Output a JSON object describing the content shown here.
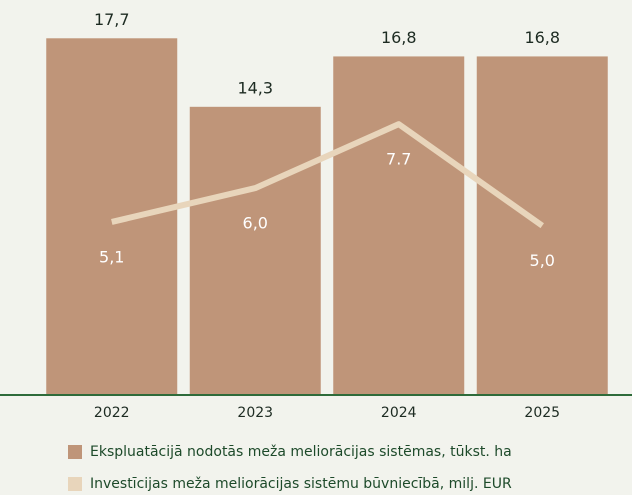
{
  "chart_data": {
    "type": "bar",
    "categories": [
      "2022",
      "2023",
      "2024",
      "2025"
    ],
    "series": [
      {
        "name": "Ekspluatācijā nodotās meža meliorācijas sistēmas, tūkst. ha",
        "color": "#bf9579",
        "values": [
          17.7,
          14.3,
          16.8,
          16.8
        ],
        "value_labels": [
          "17,7",
          "14,3",
          "16,8",
          "16,8"
        ]
      },
      {
        "name": "Investīcijas meža meliorācijas sistēmu būvniecībā, milj. EUR",
        "color": "#e8d5bb",
        "type": "line",
        "axis": "y2",
        "values": [
          5.1,
          6.0,
          7.7,
          5.0
        ],
        "value_labels": [
          "5,1",
          "6,0",
          "7.7",
          "5,0"
        ]
      }
    ],
    "ylim": [
      0,
      19.6
    ],
    "y2lim": [
      0.5,
      11
    ],
    "axis_color": "#2e6b3a"
  }
}
